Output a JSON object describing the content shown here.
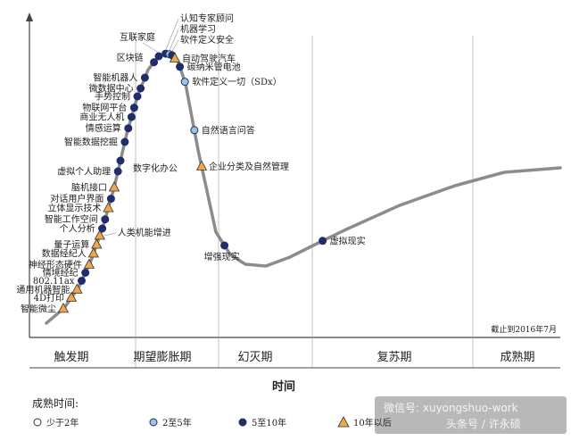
{
  "chart_data": {
    "type": "scatter",
    "title": "",
    "xlabel": "时间",
    "ylabel": "",
    "date_note": "截止到2016年7月",
    "phases": [
      "触发期",
      "期望膨胀期",
      "幻灭期",
      "复苏期",
      "成熟期"
    ],
    "legend": {
      "title": "成熟时间:",
      "items": [
        {
          "key": "lt2",
          "label": "少于2年",
          "marker": "circle-open"
        },
        {
          "key": "2to5",
          "label": "2至5年",
          "marker": "circle-light"
        },
        {
          "key": "5to10",
          "label": "5至10年",
          "marker": "circle-dark"
        },
        {
          "key": "gt10",
          "label": "10年以后",
          "marker": "triangle"
        }
      ]
    },
    "colors": {
      "curve": "#8c8c8c",
      "dark": "#1f2d6b",
      "light": "#9fc3e0",
      "triangle": "#f0a64a",
      "axis": "#444444"
    },
    "points": [
      {
        "label": "智能微尘",
        "t": 0.095,
        "cat": "gt10",
        "side": "left"
      },
      {
        "label": "4D打印",
        "t": 0.15,
        "cat": "gt10",
        "side": "left"
      },
      {
        "label": "通用机器智能",
        "t": 0.19,
        "cat": "gt10",
        "side": "left"
      },
      {
        "label": "802.11ax",
        "t": 0.225,
        "cat": "5to10",
        "side": "left"
      },
      {
        "label": "情境经纪",
        "t": 0.255,
        "cat": "5to10",
        "side": "left"
      },
      {
        "label": "神经形态硬件",
        "t": 0.285,
        "cat": "gt10",
        "side": "left"
      },
      {
        "label": "数据经纪人",
        "t": 0.32,
        "cat": "gt10",
        "side": "left"
      },
      {
        "label": "量子运算",
        "t": 0.345,
        "cat": "gt10",
        "side": "left"
      },
      {
        "label": "人类机能增进",
        "t": 0.37,
        "cat": "gt10",
        "side": "right"
      },
      {
        "label": "个人分析",
        "t": 0.39,
        "cat": "5to10",
        "side": "left"
      },
      {
        "label": "智能工作空间",
        "t": 0.415,
        "cat": "5to10",
        "side": "left"
      },
      {
        "label": "立体显示技术",
        "t": 0.445,
        "cat": "gt10",
        "side": "left"
      },
      {
        "label": "对话用户界面",
        "t": 0.47,
        "cat": "5to10",
        "side": "left"
      },
      {
        "label": "脑机接口",
        "t": 0.5,
        "cat": "gt10",
        "side": "left"
      },
      {
        "label": "虚拟个人助理",
        "t": 0.53,
        "cat": "5to10",
        "side": "left"
      },
      {
        "label": "数字化办公",
        "t": 0.55,
        "cat": "5to10",
        "side": "right"
      },
      {
        "label": "智能数据挖掘",
        "t": 0.585,
        "cat": "5to10",
        "side": "left"
      },
      {
        "label": "情感运算",
        "t": 0.615,
        "cat": "5to10",
        "side": "left"
      },
      {
        "label": "商业无人机",
        "t": 0.645,
        "cat": "5to10",
        "side": "left"
      },
      {
        "label": "物联网平台",
        "t": 0.67,
        "cat": "5to10",
        "side": "left"
      },
      {
        "label": "手势控制",
        "t": 0.7,
        "cat": "5to10",
        "side": "left"
      },
      {
        "label": "微数据中心",
        "t": 0.73,
        "cat": "5to10",
        "side": "left"
      },
      {
        "label": "智能机器人",
        "t": 0.77,
        "cat": "5to10",
        "side": "left"
      },
      {
        "label": "区块链",
        "t": 0.855,
        "cat": "5to10",
        "side": "left"
      },
      {
        "label": "互联家庭",
        "t": 0.9,
        "cat": "5to10",
        "side": "left"
      },
      {
        "label": "认知专家顾问",
        "t": 0.955,
        "cat": "5to10",
        "side": "up"
      },
      {
        "label": "机器学习",
        "t": 0.985,
        "cat": "2to5",
        "side": "up"
      },
      {
        "label": "软件定义安全",
        "t": 1.005,
        "cat": "5to10",
        "side": "up"
      },
      {
        "label": "自动驾驶汽车",
        "t": 1.025,
        "cat": "gt10",
        "side": "right"
      },
      {
        "label": "碳纳米管电池",
        "t": 1.06,
        "cat": "5to10",
        "side": "right"
      },
      {
        "label": "软件定义一切（SDx）",
        "t": 1.095,
        "cat": "2to5",
        "side": "right"
      },
      {
        "label": "自然语言问答",
        "t": 1.17,
        "cat": "2to5",
        "side": "right"
      },
      {
        "label": "企业分类及自然管理",
        "t": 1.22,
        "cat": "gt10",
        "side": "right"
      },
      {
        "label": "增强现实",
        "t": 1.33,
        "cat": "5to10",
        "side": "down"
      },
      {
        "label": "虚拟现实",
        "t": 1.56,
        "cat": "5to10",
        "side": "right"
      }
    ]
  },
  "watermark": {
    "line1": "微信号: xuyongshuo-work",
    "line2": "头条号 / 许永硕"
  }
}
